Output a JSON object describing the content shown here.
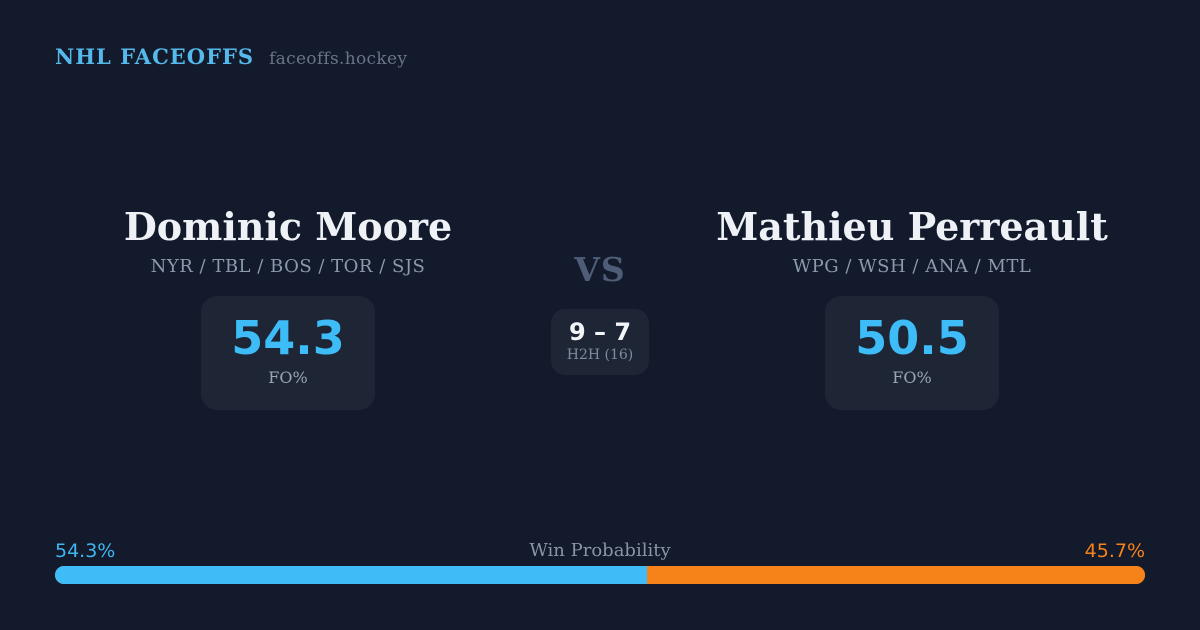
{
  "header": {
    "brand": "NHL FACEOFFS",
    "site": "faceoffs.hockey"
  },
  "left_player": {
    "name": "Dominic Moore",
    "teams": "NYR / TBL / BOS / TOR / SJS",
    "fo_value": "54.3",
    "fo_label": "FO%"
  },
  "right_player": {
    "name": "Mathieu Perreault",
    "teams": "WPG / WSH / ANA / MTL",
    "fo_value": "50.5",
    "fo_label": "FO%"
  },
  "versus": {
    "label": "VS",
    "h2h_score": "9 – 7",
    "h2h_label": "H2H (16)"
  },
  "win_probability": {
    "title": "Win Probability",
    "left_label": "54.3%",
    "right_label": "45.7%",
    "left_value": 54.3,
    "right_value": 45.7
  },
  "colors": {
    "background": "#131a2b",
    "card": "#1e2636",
    "accent_blue": "#3dbcf8",
    "accent_orange": "#f6821a",
    "brand_blue": "#55b9ec"
  }
}
